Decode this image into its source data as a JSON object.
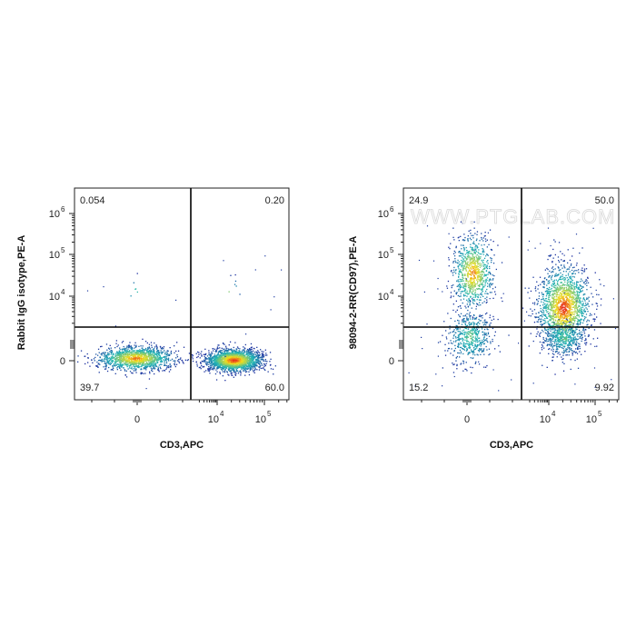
{
  "watermark": "WWW.PTGLAB.COM",
  "colors": {
    "density_low": "#1b2a9e",
    "density_mid": "#1fb5b5",
    "density_high": "#f2e01f",
    "density_peak": "#e8261c",
    "gate_line": "#000000"
  },
  "chart_data": [
    {
      "type": "scatter",
      "subtype": "flow-cytometry-density-dot-plot",
      "xlabel": "CD3,APC",
      "ylabel": "Rabbit IgG isotype,PE-A",
      "x_scale": "biexponential",
      "y_scale": "biexponential",
      "x_ticks": [
        {
          "base": "0",
          "exp": ""
        },
        {
          "base": "10",
          "exp": "4"
        },
        {
          "base": "10",
          "exp": "5"
        }
      ],
      "y_ticks": [
        {
          "base": "0",
          "exp": ""
        },
        {
          "base": "10",
          "exp": "4"
        },
        {
          "base": "10",
          "exp": "5"
        },
        {
          "base": "10",
          "exp": "6"
        }
      ],
      "quadrant_percentages": {
        "upper_left": "0.054",
        "upper_right": "0.20",
        "lower_left": "39.7",
        "lower_right": "60.0"
      },
      "populations": [
        {
          "quadrant": "lower_left",
          "percent": 39.7
        },
        {
          "quadrant": "lower_right",
          "percent": 60.0
        },
        {
          "quadrant": "upper_left",
          "percent": 0.054
        },
        {
          "quadrant": "upper_right",
          "percent": 0.2
        }
      ]
    },
    {
      "type": "scatter",
      "subtype": "flow-cytometry-density-dot-plot",
      "xlabel": "CD3,APC",
      "ylabel": "98094-2-RR(CD97),PE-A",
      "x_scale": "biexponential",
      "y_scale": "biexponential",
      "x_ticks": [
        {
          "base": "0",
          "exp": ""
        },
        {
          "base": "10",
          "exp": "4"
        },
        {
          "base": "10",
          "exp": "5"
        }
      ],
      "y_ticks": [
        {
          "base": "0",
          "exp": ""
        },
        {
          "base": "10",
          "exp": "4"
        },
        {
          "base": "10",
          "exp": "5"
        },
        {
          "base": "10",
          "exp": "6"
        }
      ],
      "quadrant_percentages": {
        "upper_left": "24.9",
        "upper_right": "50.0",
        "lower_left": "15.2",
        "lower_right": "9.92"
      },
      "populations": [
        {
          "quadrant": "upper_left",
          "percent": 24.9
        },
        {
          "quadrant": "upper_right",
          "percent": 50.0
        },
        {
          "quadrant": "lower_left",
          "percent": 15.2
        },
        {
          "quadrant": "lower_right",
          "percent": 9.92
        }
      ]
    }
  ]
}
